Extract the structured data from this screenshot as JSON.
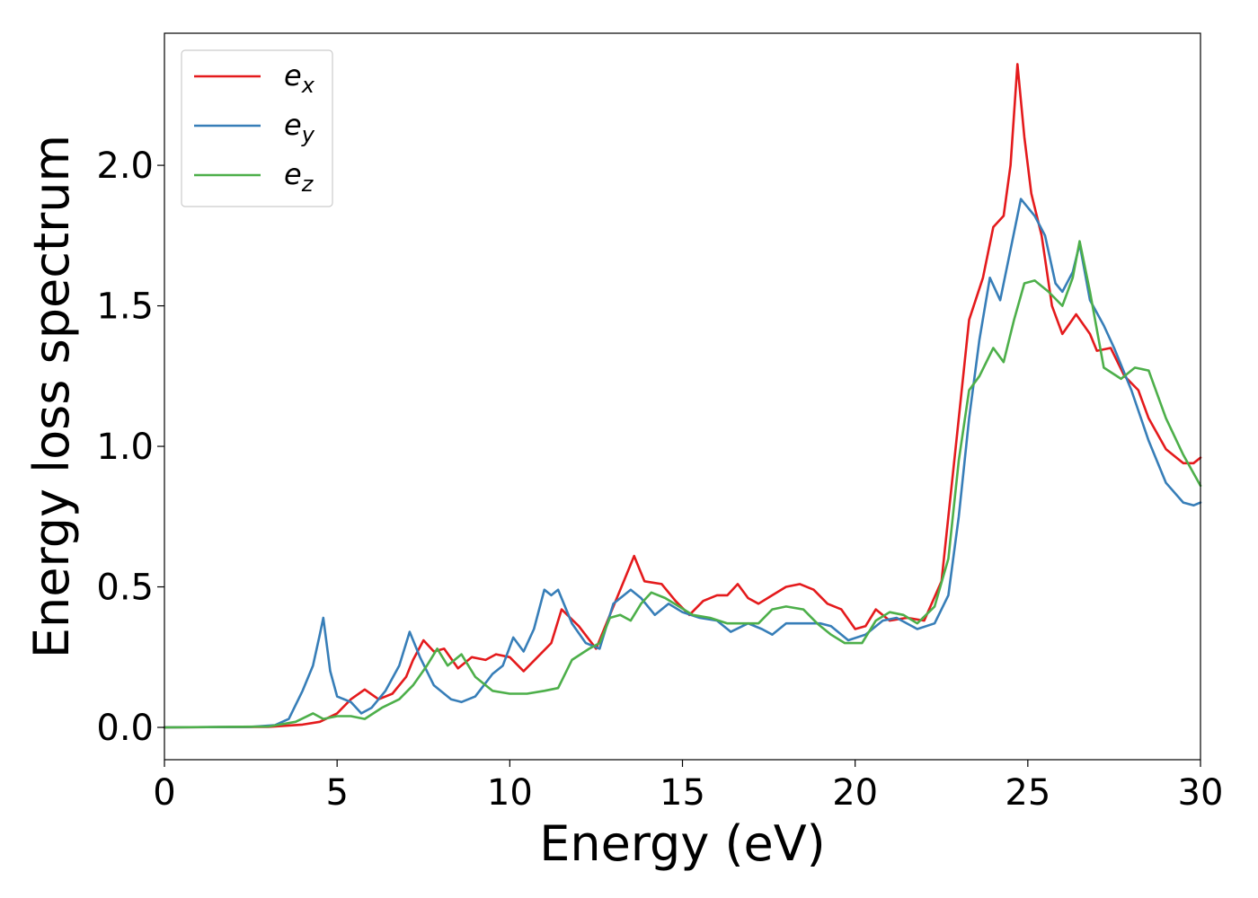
{
  "chart_data": {
    "type": "line",
    "title": "",
    "xlabel": "Energy (eV)",
    "ylabel": "Energy loss spectrum",
    "xlim": [
      0,
      30
    ],
    "ylim": [
      -0.115,
      2.47
    ],
    "xticks": [
      0,
      5,
      10,
      15,
      20,
      25,
      30
    ],
    "yticks": [
      0.0,
      0.5,
      1.0,
      1.5,
      2.0
    ],
    "xtick_labels": [
      "0",
      "5",
      "10",
      "15",
      "20",
      "25",
      "30"
    ],
    "ytick_labels": [
      "0.0",
      "0.5",
      "1.0",
      "1.5",
      "2.0"
    ],
    "grid": false,
    "legend_position": "top-left",
    "series": [
      {
        "name": "e_x",
        "base": "e",
        "sub": "x",
        "color": "#e41a1c",
        "points": [
          [
            0,
            0
          ],
          [
            3,
            0.002
          ],
          [
            4,
            0.01
          ],
          [
            4.5,
            0.02
          ],
          [
            5,
            0.05
          ],
          [
            5.4,
            0.1
          ],
          [
            5.8,
            0.135
          ],
          [
            6.2,
            0.1
          ],
          [
            6.6,
            0.12
          ],
          [
            7,
            0.18
          ],
          [
            7.2,
            0.24
          ],
          [
            7.5,
            0.31
          ],
          [
            7.8,
            0.27
          ],
          [
            8.1,
            0.28
          ],
          [
            8.5,
            0.21
          ],
          [
            8.9,
            0.25
          ],
          [
            9.3,
            0.24
          ],
          [
            9.6,
            0.26
          ],
          [
            10,
            0.25
          ],
          [
            10.4,
            0.2
          ],
          [
            10.8,
            0.25
          ],
          [
            11.2,
            0.3
          ],
          [
            11.5,
            0.42
          ],
          [
            12,
            0.36
          ],
          [
            12.5,
            0.28
          ],
          [
            13,
            0.43
          ],
          [
            13.3,
            0.52
          ],
          [
            13.6,
            0.61
          ],
          [
            13.9,
            0.52
          ],
          [
            14.4,
            0.51
          ],
          [
            14.8,
            0.45
          ],
          [
            15.2,
            0.4
          ],
          [
            15.6,
            0.45
          ],
          [
            16,
            0.47
          ],
          [
            16.3,
            0.47
          ],
          [
            16.6,
            0.51
          ],
          [
            16.9,
            0.46
          ],
          [
            17.2,
            0.44
          ],
          [
            17.6,
            0.47
          ],
          [
            18,
            0.5
          ],
          [
            18.4,
            0.51
          ],
          [
            18.8,
            0.49
          ],
          [
            19.2,
            0.44
          ],
          [
            19.6,
            0.42
          ],
          [
            20,
            0.35
          ],
          [
            20.3,
            0.36
          ],
          [
            20.6,
            0.42
          ],
          [
            21,
            0.38
          ],
          [
            21.5,
            0.39
          ],
          [
            22,
            0.38
          ],
          [
            22.5,
            0.52
          ],
          [
            23,
            1.1
          ],
          [
            23.3,
            1.45
          ],
          [
            23.7,
            1.6
          ],
          [
            24,
            1.78
          ],
          [
            24.3,
            1.82
          ],
          [
            24.5,
            2.0
          ],
          [
            24.7,
            2.36
          ],
          [
            24.9,
            2.1
          ],
          [
            25.1,
            1.9
          ],
          [
            25.4,
            1.75
          ],
          [
            25.7,
            1.5
          ],
          [
            26,
            1.4
          ],
          [
            26.4,
            1.47
          ],
          [
            26.8,
            1.4
          ],
          [
            27,
            1.34
          ],
          [
            27.4,
            1.35
          ],
          [
            27.8,
            1.25
          ],
          [
            28.2,
            1.2
          ],
          [
            28.5,
            1.1
          ],
          [
            29,
            0.99
          ],
          [
            29.5,
            0.94
          ],
          [
            29.8,
            0.94
          ],
          [
            30,
            0.96
          ]
        ]
      },
      {
        "name": "e_y",
        "base": "e",
        "sub": "y",
        "color": "#377eb8",
        "points": [
          [
            0,
            0
          ],
          [
            2.5,
            0.002
          ],
          [
            3.2,
            0.008
          ],
          [
            3.6,
            0.03
          ],
          [
            4,
            0.13
          ],
          [
            4.3,
            0.22
          ],
          [
            4.5,
            0.33
          ],
          [
            4.6,
            0.39
          ],
          [
            4.8,
            0.2
          ],
          [
            5,
            0.11
          ],
          [
            5.4,
            0.09
          ],
          [
            5.7,
            0.05
          ],
          [
            6,
            0.07
          ],
          [
            6.4,
            0.13
          ],
          [
            6.8,
            0.22
          ],
          [
            7.1,
            0.34
          ],
          [
            7.4,
            0.25
          ],
          [
            7.8,
            0.15
          ],
          [
            8.3,
            0.1
          ],
          [
            8.6,
            0.09
          ],
          [
            9,
            0.11
          ],
          [
            9.5,
            0.19
          ],
          [
            9.8,
            0.22
          ],
          [
            10.1,
            0.32
          ],
          [
            10.4,
            0.27
          ],
          [
            10.7,
            0.35
          ],
          [
            11,
            0.49
          ],
          [
            11.2,
            0.47
          ],
          [
            11.4,
            0.49
          ],
          [
            11.8,
            0.37
          ],
          [
            12.2,
            0.3
          ],
          [
            12.6,
            0.28
          ],
          [
            13,
            0.44
          ],
          [
            13.5,
            0.49
          ],
          [
            13.8,
            0.46
          ],
          [
            14.2,
            0.4
          ],
          [
            14.6,
            0.44
          ],
          [
            15,
            0.41
          ],
          [
            15.5,
            0.39
          ],
          [
            16,
            0.38
          ],
          [
            16.4,
            0.34
          ],
          [
            16.9,
            0.37
          ],
          [
            17.3,
            0.35
          ],
          [
            17.6,
            0.33
          ],
          [
            18,
            0.37
          ],
          [
            18.5,
            0.37
          ],
          [
            19,
            0.37
          ],
          [
            19.3,
            0.36
          ],
          [
            19.8,
            0.31
          ],
          [
            20.3,
            0.33
          ],
          [
            20.8,
            0.38
          ],
          [
            21.2,
            0.39
          ],
          [
            21.8,
            0.35
          ],
          [
            22.3,
            0.37
          ],
          [
            22.7,
            0.47
          ],
          [
            23,
            0.75
          ],
          [
            23.3,
            1.1
          ],
          [
            23.6,
            1.38
          ],
          [
            23.9,
            1.6
          ],
          [
            24.2,
            1.52
          ],
          [
            24.5,
            1.7
          ],
          [
            24.8,
            1.88
          ],
          [
            25.2,
            1.82
          ],
          [
            25.5,
            1.75
          ],
          [
            25.8,
            1.58
          ],
          [
            26,
            1.55
          ],
          [
            26.3,
            1.62
          ],
          [
            26.5,
            1.72
          ],
          [
            26.8,
            1.52
          ],
          [
            27.2,
            1.43
          ],
          [
            27.5,
            1.35
          ],
          [
            28,
            1.2
          ],
          [
            28.5,
            1.02
          ],
          [
            29,
            0.87
          ],
          [
            29.5,
            0.8
          ],
          [
            29.8,
            0.79
          ],
          [
            30,
            0.8
          ]
        ]
      },
      {
        "name": "e_z",
        "base": "e",
        "sub": "z",
        "color": "#4daf4a",
        "points": [
          [
            0,
            0
          ],
          [
            3,
            0.003
          ],
          [
            3.8,
            0.02
          ],
          [
            4.3,
            0.05
          ],
          [
            4.6,
            0.03
          ],
          [
            5,
            0.04
          ],
          [
            5.4,
            0.04
          ],
          [
            5.8,
            0.03
          ],
          [
            6.3,
            0.07
          ],
          [
            6.8,
            0.1
          ],
          [
            7.2,
            0.15
          ],
          [
            7.6,
            0.22
          ],
          [
            7.9,
            0.28
          ],
          [
            8.2,
            0.22
          ],
          [
            8.6,
            0.26
          ],
          [
            9,
            0.18
          ],
          [
            9.5,
            0.13
          ],
          [
            10,
            0.12
          ],
          [
            10.5,
            0.12
          ],
          [
            11,
            0.13
          ],
          [
            11.4,
            0.14
          ],
          [
            11.8,
            0.24
          ],
          [
            12.3,
            0.28
          ],
          [
            12.6,
            0.3
          ],
          [
            12.9,
            0.39
          ],
          [
            13.2,
            0.4
          ],
          [
            13.5,
            0.38
          ],
          [
            13.8,
            0.44
          ],
          [
            14.1,
            0.48
          ],
          [
            14.5,
            0.46
          ],
          [
            14.9,
            0.43
          ],
          [
            15.3,
            0.4
          ],
          [
            15.8,
            0.39
          ],
          [
            16.3,
            0.37
          ],
          [
            16.8,
            0.37
          ],
          [
            17.2,
            0.37
          ],
          [
            17.6,
            0.42
          ],
          [
            18,
            0.43
          ],
          [
            18.5,
            0.42
          ],
          [
            18.9,
            0.37
          ],
          [
            19.3,
            0.33
          ],
          [
            19.7,
            0.3
          ],
          [
            20.2,
            0.3
          ],
          [
            20.6,
            0.38
          ],
          [
            21,
            0.41
          ],
          [
            21.4,
            0.4
          ],
          [
            21.8,
            0.37
          ],
          [
            22.3,
            0.43
          ],
          [
            22.7,
            0.6
          ],
          [
            23,
            0.95
          ],
          [
            23.3,
            1.2
          ],
          [
            23.6,
            1.25
          ],
          [
            24,
            1.35
          ],
          [
            24.3,
            1.3
          ],
          [
            24.6,
            1.45
          ],
          [
            24.9,
            1.58
          ],
          [
            25.2,
            1.59
          ],
          [
            25.6,
            1.55
          ],
          [
            26,
            1.5
          ],
          [
            26.3,
            1.6
          ],
          [
            26.5,
            1.73
          ],
          [
            26.8,
            1.55
          ],
          [
            27.2,
            1.28
          ],
          [
            27.7,
            1.24
          ],
          [
            28.1,
            1.28
          ],
          [
            28.5,
            1.27
          ],
          [
            29,
            1.1
          ],
          [
            29.5,
            0.97
          ],
          [
            30,
            0.86
          ]
        ]
      }
    ]
  }
}
